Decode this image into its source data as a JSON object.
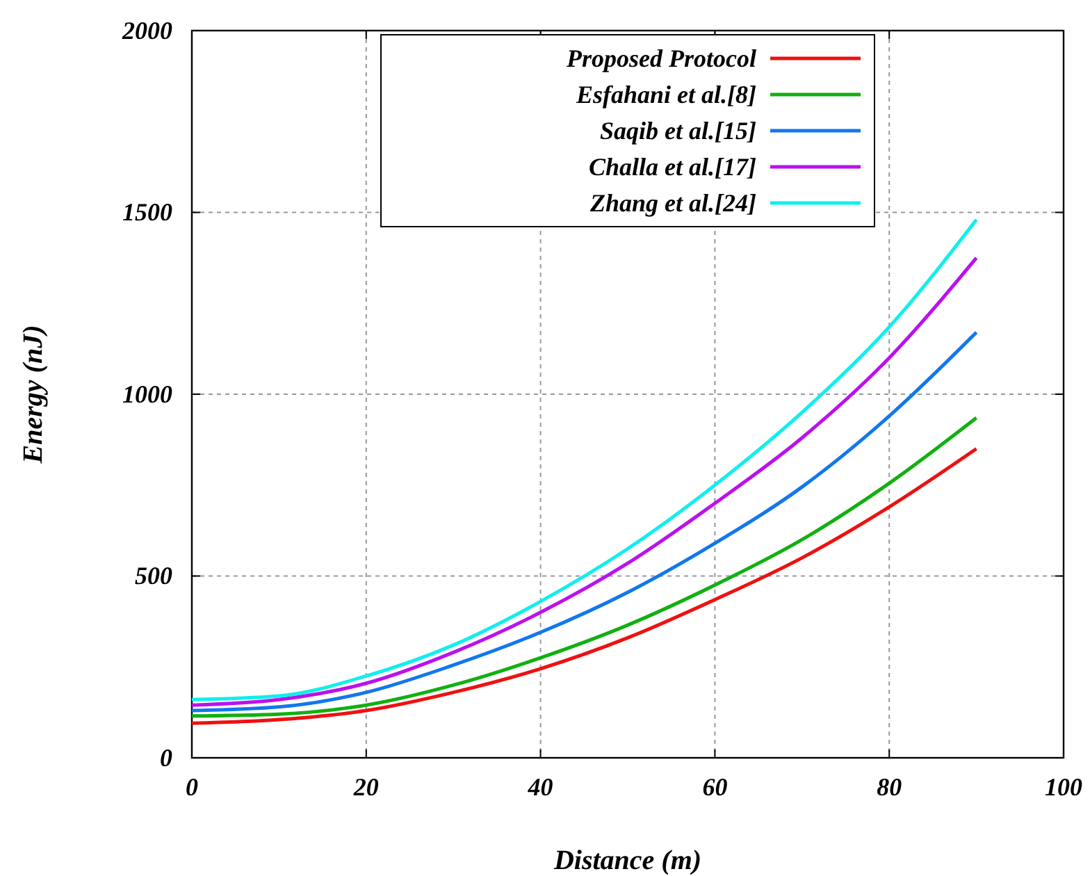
{
  "chart_data": {
    "type": "line",
    "xlabel": "Distance (m)",
    "ylabel": "Energy (nJ)",
    "x": [
      0,
      10,
      20,
      30,
      40,
      50,
      60,
      70,
      80,
      90
    ],
    "xlim": [
      0,
      100
    ],
    "xticks": [
      0,
      20,
      40,
      60,
      80,
      100
    ],
    "ylim": [
      0,
      2000
    ],
    "yticks": [
      0,
      500,
      1000,
      1500,
      2000
    ],
    "grid": true,
    "legend": "top",
    "marker": "none",
    "line_style": "solid",
    "series": [
      {
        "name": "Proposed Protocol",
        "color": "#ee1111",
        "values": [
          95,
          105,
          130,
          180,
          245,
          330,
          435,
          550,
          690,
          850
        ]
      },
      {
        "name": "Esfahani et al.[8]",
        "color": "#11b011",
        "values": [
          115,
          120,
          145,
          200,
          275,
          365,
          475,
          600,
          755,
          935
        ]
      },
      {
        "name": "Saqib et al.[15]",
        "color": "#1177ee",
        "values": [
          130,
          140,
          180,
          255,
          345,
          455,
          590,
          745,
          940,
          1170
        ]
      },
      {
        "name": "Challa et al.[17]",
        "color": "#bb11ee",
        "values": [
          145,
          160,
          205,
          290,
          400,
          535,
          700,
          880,
          1100,
          1375
        ]
      },
      {
        "name": "Zhang et al.[24]",
        "color": "#11eeee",
        "values": [
          160,
          170,
          225,
          310,
          430,
          575,
          750,
          950,
          1185,
          1480
        ]
      }
    ]
  }
}
